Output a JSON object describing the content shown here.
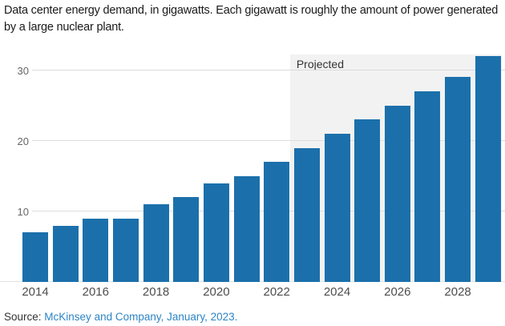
{
  "header": {
    "title": "Data center energy demand, in gigawatts. Each gigawatt is roughly the amount of power generated by a large nuclear plant."
  },
  "chart_data": {
    "type": "bar",
    "title": "Data center energy demand, in gigawatts",
    "categories": [
      2014,
      2015,
      2016,
      2017,
      2018,
      2019,
      2020,
      2021,
      2022,
      2023,
      2024,
      2025,
      2026,
      2027,
      2028,
      2029
    ],
    "values": [
      7,
      8,
      9,
      9,
      11,
      12,
      14,
      15,
      17,
      19,
      21,
      23,
      25,
      27,
      29,
      32
    ],
    "xlabel": "",
    "ylabel": "",
    "ylim": [
      0,
      33
    ],
    "yticks": [
      10,
      20,
      30
    ],
    "xticks": [
      2014,
      2016,
      2018,
      2020,
      2022,
      2024,
      2026,
      2028
    ],
    "grid": "horizontal",
    "legend": "none",
    "bar_color": "#1b70ab",
    "projected": {
      "label": "Projected",
      "start_category": 2023,
      "background": "#f2f2f2"
    }
  },
  "footer": {
    "source_prefix": "Source:",
    "source_link_text": "McKinsey and Company, January, 2023.",
    "source_link_color": "#2d85c5"
  }
}
